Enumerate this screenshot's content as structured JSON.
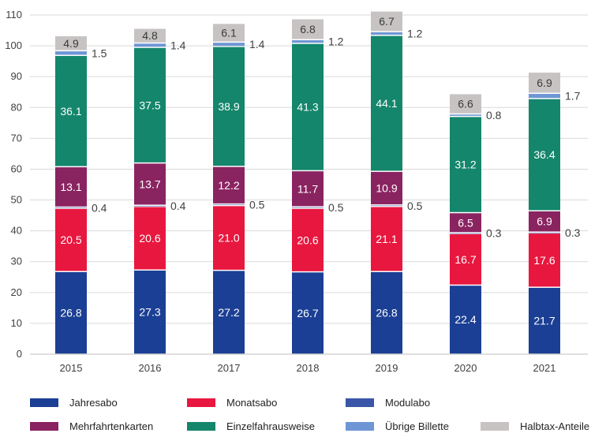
{
  "chart_data": {
    "type": "bar",
    "stacked": true,
    "categories": [
      "2015",
      "2016",
      "2017",
      "2018",
      "2019",
      "2020",
      "2021"
    ],
    "ylim": [
      0,
      110
    ],
    "yticks": [
      "0",
      "10",
      "20",
      "30",
      "40",
      "50",
      "60",
      "70",
      "80",
      "90",
      "100",
      "110"
    ],
    "grid": true,
    "legend_position": "bottom",
    "series": [
      {
        "name": "Jahresabo",
        "color": "#1b3f94",
        "values": [
          26.8,
          27.3,
          27.2,
          26.7,
          26.8,
          22.4,
          21.7
        ],
        "labels": [
          "26.8",
          "27.3",
          "27.2",
          "26.7",
          "26.8",
          "22.4",
          "21.7"
        ],
        "label_position": "inside"
      },
      {
        "name": "Monatsabo",
        "color": "#e8173f",
        "values": [
          20.5,
          20.6,
          21.0,
          20.6,
          21.1,
          16.7,
          17.6
        ],
        "labels": [
          "20.5",
          "20.6",
          "21.0",
          "20.6",
          "21.1",
          "16.7",
          "17.6"
        ],
        "label_position": "inside"
      },
      {
        "name": "Modulabo",
        "color": "#3a56a8",
        "values": [
          0.4,
          0.4,
          0.5,
          0.5,
          0.5,
          0.3,
          0.3
        ],
        "labels": [
          "0.4",
          "0.4",
          "0.5",
          "0.5",
          "0.5",
          "0.3",
          "0.3"
        ],
        "label_position": "outside"
      },
      {
        "name": "Mehrfahrtenkarten",
        "color": "#8a2461",
        "values": [
          13.1,
          13.7,
          12.2,
          11.7,
          10.9,
          6.5,
          6.9
        ],
        "labels": [
          "13.1",
          "13.7",
          "12.2",
          "11.7",
          "10.9",
          "6.5",
          "6.9"
        ],
        "label_position": "inside"
      },
      {
        "name": "Einzelfahrausweise",
        "color": "#14866c",
        "values": [
          36.1,
          37.5,
          38.9,
          41.3,
          44.1,
          31.2,
          36.4
        ],
        "labels": [
          "36.1",
          "37.5",
          "38.9",
          "41.3",
          "44.1",
          "31.2",
          "36.4"
        ],
        "label_position": "inside"
      },
      {
        "name": "Übrige Billette",
        "color": "#6e96d4",
        "values": [
          1.5,
          1.4,
          1.4,
          1.2,
          1.2,
          0.8,
          1.7
        ],
        "labels": [
          "1.5",
          "1.4",
          "1.4",
          "1.2",
          "1.2",
          "0.8",
          "1.7"
        ],
        "label_position": "outside"
      },
      {
        "name": "Halbtax-Anteile",
        "color": "#c7c3c3",
        "values": [
          4.9,
          4.8,
          6.1,
          6.8,
          6.7,
          6.6,
          6.9
        ],
        "labels": [
          "4.9",
          "4.8",
          "6.1",
          "6.8",
          "6.7",
          "6.6",
          "6.9"
        ],
        "label_position": "inside"
      }
    ],
    "legend_order": [
      "Jahresabo",
      "Monatsabo",
      "Modulabo",
      "Mehrfahrtenkarten",
      "Einzelfahrausweise",
      "Übrige Billette",
      "Halbtax-Anteile"
    ]
  }
}
